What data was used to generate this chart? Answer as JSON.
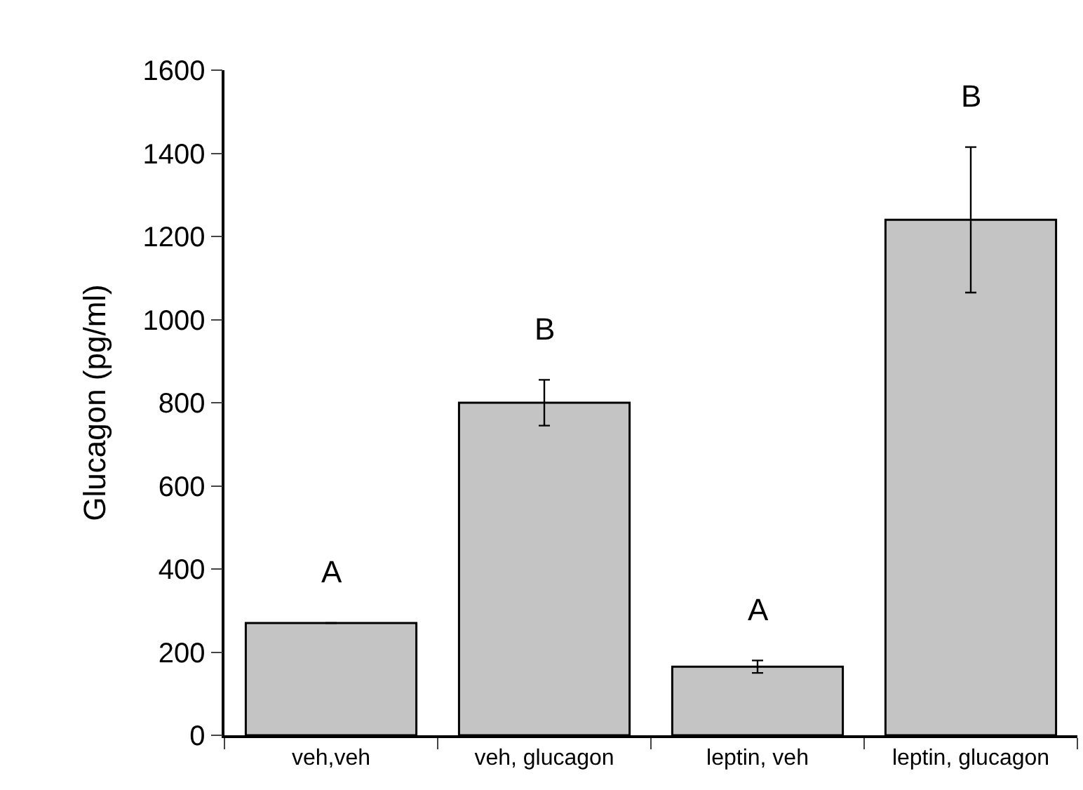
{
  "chart_data": {
    "type": "bar",
    "ylabel": "Glucagon (pg/ml)",
    "categories": [
      "veh,veh",
      "veh, glucagon",
      "leptin, veh",
      "leptin, glucagon"
    ],
    "values": [
      270,
      800,
      165,
      1240
    ],
    "errors": [
      null,
      55,
      15,
      175
    ],
    "color": "#c4c4c4",
    "ylim": [
      0,
      1600
    ],
    "yticks": [
      0,
      200,
      400,
      600,
      800,
      1000,
      1200,
      1400,
      1600
    ],
    "annotations": [
      "A",
      "B",
      "A",
      "B"
    ],
    "legend": false
  }
}
